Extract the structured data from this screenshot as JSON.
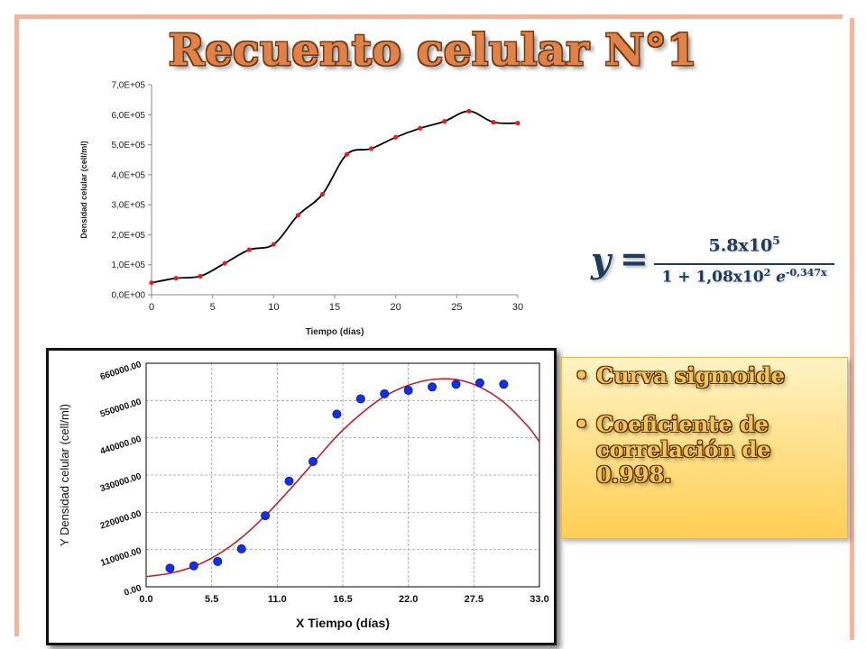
{
  "slide": {
    "title": "Recuento celular N°1",
    "equation": {
      "lhs": "y",
      "equals": "=",
      "numerator": "5.8x10",
      "numerator_exp": "5",
      "denominator": "1 + 1,08x10",
      "denominator_exp": "2",
      "e": "e",
      "exponent": "-0,347x"
    },
    "bullets": [
      {
        "marker": "•",
        "text": "Curva sigmoide"
      },
      {
        "marker": "•",
        "text": "Coeficiente de correlación de 0.998."
      }
    ],
    "colors": {
      "title": "#e0834b",
      "accent_border": "#f0b7a0",
      "note_bg": "#ffe08a",
      "equation": "#1e3a5c"
    }
  },
  "chart_data": [
    {
      "type": "line",
      "xlabel": "Tiempo (días)",
      "ylabel": "Densidad celular (cell/ml)",
      "xlim": [
        0,
        30
      ],
      "ylim": [
        0,
        700000
      ],
      "x_ticks": [
        "0",
        "5",
        "10",
        "15",
        "20",
        "25",
        "30"
      ],
      "y_ticks": [
        "0,0E+00",
        "1,0E+05",
        "2,0E+05",
        "3,0E+05",
        "4,0E+05",
        "5,0E+05",
        "6,0E+05",
        "7,0E+05"
      ],
      "grid": false,
      "series": [
        {
          "x": [
            0,
            2,
            4,
            6,
            8,
            10,
            12,
            14,
            16,
            18,
            20,
            22,
            24,
            26,
            28,
            30
          ],
          "y": [
            40000,
            55000,
            62000,
            105000,
            150000,
            168000,
            265000,
            335000,
            468000,
            487000,
            525000,
            555000,
            578000,
            612000,
            575000,
            572000
          ],
          "color": "#000000",
          "marker_color": "#e02020"
        }
      ]
    },
    {
      "type": "scatter",
      "xlabel": "X Tiempo (días)",
      "ylabel": "Y Densidad celular (cell/ml)",
      "xlim": [
        0,
        33
      ],
      "ylim": [
        0,
        660000
      ],
      "x_ticks": [
        "0.0",
        "5.5",
        "11.0",
        "16.5",
        "22.0",
        "27.5",
        "33.0"
      ],
      "y_ticks": [
        "0.00",
        "110000.00",
        "220000.00",
        "330000.00",
        "440000.00",
        "550000.00",
        "660000.00"
      ],
      "grid": true,
      "series": [
        {
          "x": [
            2,
            4,
            6,
            8,
            10,
            12,
            14,
            16,
            18,
            20,
            22,
            24,
            26,
            28,
            30
          ],
          "y": [
            55000,
            62000,
            75000,
            112000,
            210000,
            312000,
            370000,
            510000,
            555000,
            570000,
            580000,
            590000,
            598000,
            602000,
            598000
          ],
          "color": "#1530e0"
        },
        {
          "x": [
            0,
            2,
            4,
            6,
            8,
            10,
            12,
            14,
            16,
            18,
            20,
            22,
            24,
            26,
            28,
            30,
            32,
            33
          ],
          "y": [
            30000,
            40000,
            60000,
            95000,
            145000,
            210000,
            285000,
            365000,
            445000,
            510000,
            562000,
            595000,
            612000,
            612000,
            590000,
            545000,
            475000,
            428000
          ],
          "color": "#c0202a"
        }
      ]
    }
  ]
}
